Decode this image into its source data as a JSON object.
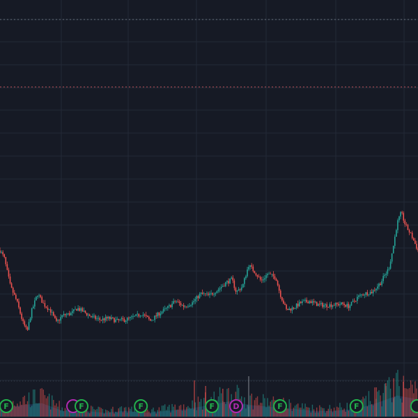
{
  "chart_data": {
    "type": "candlestick",
    "grid": true,
    "ylim": [
      0,
      100
    ],
    "x_range": [
      0,
      100
    ],
    "colors": {
      "background": "#161a25",
      "grid": "#232936",
      "up": "#26a69a",
      "down": "#ef5350",
      "dashed_line_top": "#6b7280",
      "dashed_line_red": "#c0505a",
      "volume_area": "#1e3350",
      "earnings_marker": "#22b14c",
      "dividend_marker": "#b02ab0"
    },
    "reference_lines": [
      {
        "name": "reference-line-gray",
        "value": 100,
        "style": "dashed"
      },
      {
        "name": "reference-line-red",
        "value": 81.3,
        "style": "dashed"
      }
    ],
    "volume_baseline": 0,
    "anchors": [
      [
        0.0,
        36.0
      ],
      [
        1.0,
        34.0
      ],
      [
        2.5,
        26.0
      ],
      [
        4.0,
        22.0
      ],
      [
        5.5,
        16.0
      ],
      [
        6.5,
        13.5
      ],
      [
        7.5,
        19.0
      ],
      [
        9.0,
        24.0
      ],
      [
        10.5,
        21.0
      ],
      [
        12.0,
        19.5
      ],
      [
        13.5,
        16.0
      ],
      [
        15.0,
        18.0
      ],
      [
        17.0,
        18.5
      ],
      [
        18.5,
        20.0
      ],
      [
        20.0,
        19.0
      ],
      [
        22.0,
        17.5
      ],
      [
        24.0,
        16.8
      ],
      [
        26.0,
        17.2
      ],
      [
        28.0,
        16.5
      ],
      [
        30.0,
        16.8
      ],
      [
        32.0,
        17.5
      ],
      [
        34.0,
        18.5
      ],
      [
        36.0,
        16.5
      ],
      [
        38.0,
        18.5
      ],
      [
        40.0,
        20.0
      ],
      [
        42.0,
        22.0
      ],
      [
        44.0,
        20.5
      ],
      [
        46.0,
        21.5
      ],
      [
        48.0,
        24.0
      ],
      [
        50.0,
        23.5
      ],
      [
        52.0,
        25.0
      ],
      [
        54.0,
        27.0
      ],
      [
        55.5,
        28.0
      ],
      [
        56.5,
        24.5
      ],
      [
        58.0,
        26.0
      ],
      [
        59.5,
        32.0
      ],
      [
        61.0,
        30.0
      ],
      [
        62.5,
        27.5
      ],
      [
        64.0,
        29.5
      ],
      [
        66.0,
        28.5
      ],
      [
        67.0,
        24.0
      ],
      [
        68.5,
        19.5
      ],
      [
        70.0,
        20.0
      ],
      [
        72.0,
        21.5
      ],
      [
        74.0,
        22.0
      ],
      [
        76.0,
        21.0
      ],
      [
        78.0,
        20.8
      ],
      [
        80.0,
        21.0
      ],
      [
        82.0,
        21.2
      ],
      [
        83.5,
        20.5
      ],
      [
        85.5,
        23.0
      ],
      [
        87.0,
        24.0
      ],
      [
        89.0,
        24.5
      ],
      [
        91.0,
        27.0
      ],
      [
        93.0,
        31.0
      ],
      [
        94.0,
        36.5
      ],
      [
        95.0,
        43.5
      ],
      [
        96.0,
        46.5
      ],
      [
        97.0,
        43.0
      ],
      [
        98.5,
        40.0
      ],
      [
        100.0,
        36.0
      ]
    ],
    "volume_profile": [
      [
        0,
        4
      ],
      [
        5,
        6
      ],
      [
        10,
        7
      ],
      [
        15,
        3
      ],
      [
        20,
        3
      ],
      [
        25,
        2
      ],
      [
        30,
        3
      ],
      [
        35,
        2
      ],
      [
        40,
        3
      ],
      [
        45,
        4
      ],
      [
        50,
        6
      ],
      [
        55,
        8
      ],
      [
        60,
        6
      ],
      [
        65,
        5
      ],
      [
        70,
        4
      ],
      [
        75,
        3
      ],
      [
        80,
        3
      ],
      [
        85,
        4
      ],
      [
        90,
        7
      ],
      [
        95,
        11
      ],
      [
        100,
        9
      ]
    ],
    "event_markers": [
      {
        "x": 1.5,
        "label": "F",
        "kind": "earnings"
      },
      {
        "x": 17.5,
        "label": "",
        "kind": "dividend"
      },
      {
        "x": 19.5,
        "label": "F",
        "kind": "earnings"
      },
      {
        "x": 33.7,
        "label": "F",
        "kind": "earnings"
      },
      {
        "x": 50.7,
        "label": "F",
        "kind": "earnings"
      },
      {
        "x": 56.5,
        "label": "D",
        "kind": "dividend"
      },
      {
        "x": 67.0,
        "label": "F",
        "kind": "earnings"
      },
      {
        "x": 85.3,
        "label": "F",
        "kind": "earnings"
      },
      {
        "x": 99.8,
        "label": "",
        "kind": "earnings"
      }
    ]
  }
}
